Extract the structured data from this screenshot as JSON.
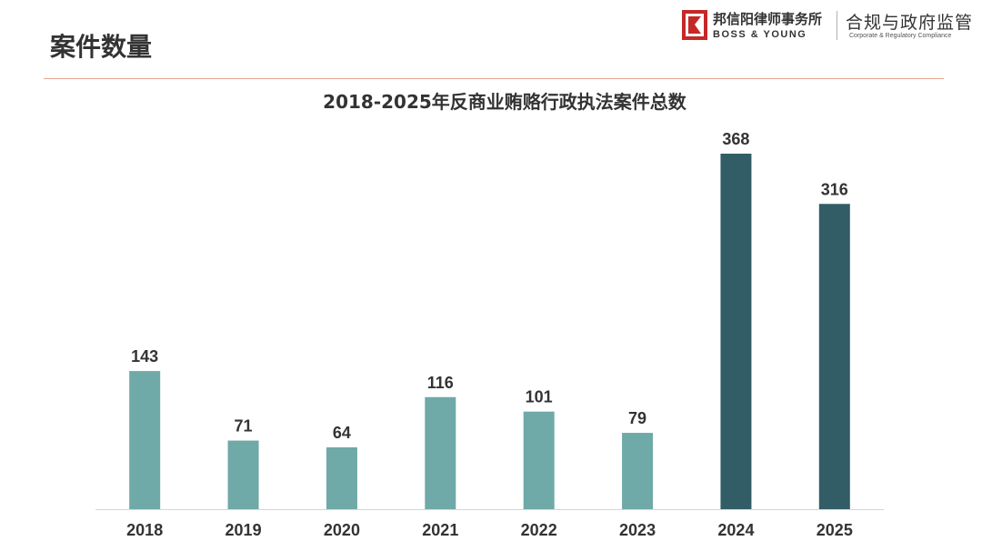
{
  "page": {
    "title": "案件数量"
  },
  "logo": {
    "firm_cn": "邦信阳律师事务所",
    "firm_en": "BOSS & YOUNG",
    "practice_cn": "合规与政府监管",
    "practice_en": "Corporate & Regulatory Compliance"
  },
  "colors": {
    "bar_light": "#6fa9a8",
    "bar_dark": "#335d66",
    "rule": "#e8a48e"
  },
  "chart_data": {
    "type": "bar",
    "title": "2018-2025年反商业贿赂行政执法案件总数",
    "categories": [
      "2018",
      "2019",
      "2020",
      "2021",
      "2022",
      "2023",
      "2024",
      "2025"
    ],
    "values": [
      143,
      71,
      64,
      116,
      101,
      79,
      368,
      316
    ],
    "highlight_categories": [
      "2024",
      "2025"
    ],
    "xlabel": "",
    "ylabel": "",
    "ylim": [
      0,
      368
    ],
    "grid": false,
    "legend": "none",
    "data_labels": true
  }
}
